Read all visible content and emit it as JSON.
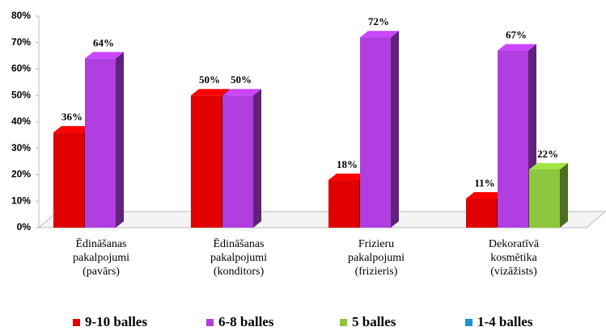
{
  "chart_data": {
    "type": "bar3d",
    "categories": [
      "Ēdināšanas pakalpojumi (pavārs)",
      "Ēdināšanas pakalpojumi (konditors)",
      "Frizieru pakalpojumi (frizieris)",
      "Dekoratīvā kosmētika (vizāžists)"
    ],
    "series": [
      {
        "name": "9-10 balles",
        "color": "#e00000",
        "values": [
          36,
          50,
          18,
          11
        ],
        "value_labels": [
          "36%",
          "50%",
          "18%",
          "11%"
        ]
      },
      {
        "name": "6-8 balles",
        "color": "#b03ee0",
        "values": [
          64,
          50,
          72,
          67
        ],
        "value_labels": [
          "64%",
          "50%",
          "72%",
          "67%"
        ]
      },
      {
        "name": "5 balles",
        "color": "#8dc63f",
        "values": [
          null,
          null,
          null,
          22
        ],
        "value_labels": [
          null,
          null,
          null,
          "22%"
        ]
      },
      {
        "name": "1-4 balles",
        "color": "#1e8fd0",
        "values": [
          null,
          null,
          null,
          null
        ],
        "value_labels": [
          null,
          null,
          null,
          null
        ]
      }
    ],
    "ylim": [
      0,
      80
    ],
    "yticks": [
      {
        "value": 0,
        "label": "0%"
      },
      {
        "value": 10,
        "label": "10%"
      },
      {
        "value": 20,
        "label": "20%"
      },
      {
        "value": 30,
        "label": "30%"
      },
      {
        "value": 40,
        "label": "40%"
      },
      {
        "value": 50,
        "label": "50%"
      },
      {
        "value": 60,
        "label": "60%"
      },
      {
        "value": 70,
        "label": "70%"
      },
      {
        "value": 80,
        "label": "80%"
      }
    ],
    "legend": "bottom"
  }
}
